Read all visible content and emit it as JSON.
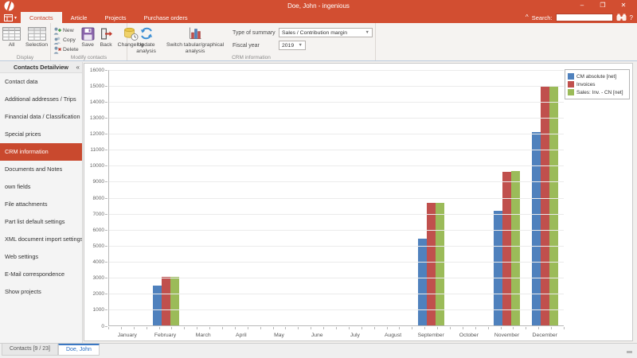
{
  "window": {
    "title": "Doe, John - ingenious",
    "minimize": "–",
    "maximize": "❐",
    "close": "✕"
  },
  "ribbon": {
    "tabs": [
      {
        "label": "Contacts",
        "active": true
      },
      {
        "label": "Article",
        "active": false
      },
      {
        "label": "Projects",
        "active": false
      },
      {
        "label": "Purchase orders",
        "active": false
      }
    ],
    "display": {
      "group_label": "Display",
      "all": "All",
      "selection": "Selection"
    },
    "modify": {
      "group_label": "Modify contacts",
      "new": "New",
      "copy": "Copy",
      "delete": "Delete",
      "save": "Save",
      "back": "Back",
      "changelog": "Changelog"
    },
    "crm": {
      "group_label": "CRM information",
      "update": "Update analysis",
      "switch": "Switch tabular/graphical analysis",
      "type_label": "Type of summary",
      "type_value": "Sales / Contribution margin",
      "year_label": "Fiscal year",
      "year_value": "2019"
    }
  },
  "search": {
    "collapse": "^",
    "label": "Search:",
    "value": "",
    "help": "?"
  },
  "sidebar": {
    "header": "Contacts Detailview",
    "collapse_icon": "«",
    "items": [
      {
        "label": "Contact data",
        "selected": false
      },
      {
        "label": "Additional addresses / Trips",
        "selected": false
      },
      {
        "label": "Financial data / Classification",
        "selected": false
      },
      {
        "label": "Special prices",
        "selected": false
      },
      {
        "label": "CRM information",
        "selected": true
      },
      {
        "label": "Documents and Notes",
        "selected": false
      },
      {
        "label": "own fields",
        "selected": false
      },
      {
        "label": "File attachments",
        "selected": false
      },
      {
        "label": "Part list default settings",
        "selected": false
      },
      {
        "label": "XML document import settings",
        "selected": false
      },
      {
        "label": "Web settings",
        "selected": false
      },
      {
        "label": "E-Mail correspondence",
        "selected": false
      },
      {
        "label": "Show projects",
        "selected": false
      }
    ]
  },
  "bottom_tabs": [
    {
      "label": "Contacts [9 / 23]",
      "active": false
    },
    {
      "label": "Doe, John",
      "active": true
    }
  ],
  "chart_data": {
    "type": "bar",
    "title": "",
    "categories": [
      "January",
      "February",
      "March",
      "April",
      "May",
      "June",
      "July",
      "August",
      "September",
      "October",
      "November",
      "December"
    ],
    "series": [
      {
        "name": "CM absolute [net]",
        "color": "#4F81BD",
        "values": [
          0,
          2500,
          0,
          0,
          0,
          0,
          0,
          0,
          5450,
          0,
          7200,
          12100
        ]
      },
      {
        "name": "Invoices",
        "color": "#C0504D",
        "values": [
          0,
          3050,
          0,
          0,
          0,
          0,
          0,
          0,
          7700,
          0,
          9600,
          15000
        ]
      },
      {
        "name": "Sales: Inv. - CN [net]",
        "color": "#9BBB59",
        "values": [
          0,
          3050,
          0,
          0,
          0,
          0,
          0,
          0,
          7700,
          0,
          9650,
          15000
        ]
      }
    ],
    "ylim": [
      0,
      16000
    ],
    "ytick_step": 1000,
    "grid": true,
    "legend_position": "top-right"
  },
  "colors": {
    "titlebar": "#d24e31",
    "ribbon_bg": "#f5f3f1",
    "selected_item_bg": "#c9492e",
    "active_bottom_tab_text": "#2a6fc4",
    "bar_blue": "#4F81BD",
    "bar_red": "#C0504D",
    "bar_green": "#9BBB59"
  }
}
